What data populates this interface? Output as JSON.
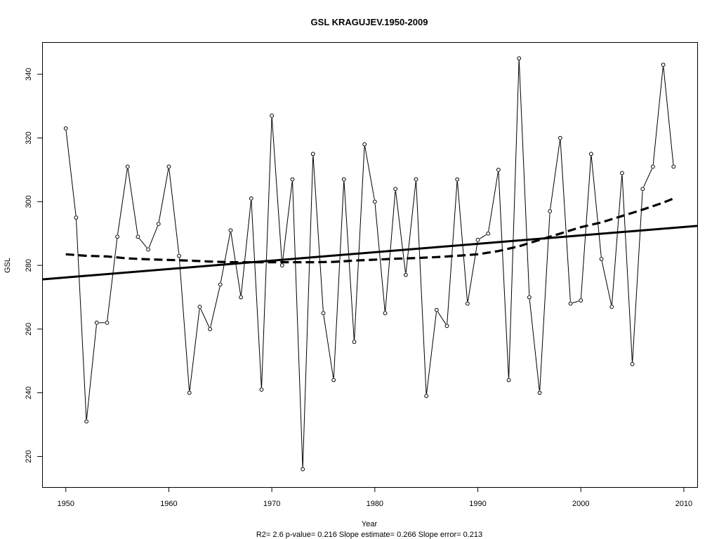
{
  "chart_data": {
    "type": "line",
    "title": "GSL   KRAGUJEV.1950-2009",
    "xlabel": "Year",
    "ylabel": "GSL",
    "subtitle": "R2= 2.6  p-value= 0.216  Slope estimate= 0.266  Slope error= 0.213",
    "xlim": [
      1947.7,
      2011.3
    ],
    "ylim": [
      210.4,
      350.1
    ],
    "xticks": [
      1950,
      1960,
      1970,
      1980,
      1990,
      2000,
      2010
    ],
    "yticks": [
      220,
      240,
      260,
      280,
      300,
      320,
      340
    ],
    "grid": false,
    "x": [
      1950,
      1951,
      1952,
      1953,
      1954,
      1955,
      1956,
      1957,
      1958,
      1959,
      1960,
      1961,
      1962,
      1963,
      1964,
      1965,
      1966,
      1967,
      1968,
      1969,
      1970,
      1971,
      1972,
      1973,
      1974,
      1975,
      1976,
      1977,
      1978,
      1979,
      1980,
      1981,
      1982,
      1983,
      1984,
      1985,
      1986,
      1987,
      1988,
      1989,
      1990,
      1991,
      1992,
      1993,
      1994,
      1995,
      1996,
      1997,
      1998,
      1999,
      2000,
      2001,
      2002,
      2003,
      2004,
      2005,
      2006,
      2007,
      2008,
      2009
    ],
    "series": [
      {
        "values": [
          323,
          295,
          231,
          262,
          262,
          289,
          311,
          289,
          285,
          293,
          311,
          283,
          240,
          267,
          260,
          274,
          291,
          270,
          301,
          241,
          327,
          280,
          307,
          216,
          315,
          265,
          244,
          307,
          256,
          318,
          300,
          265,
          304,
          277,
          307,
          239,
          266,
          261,
          307,
          268,
          288,
          290,
          310,
          244,
          345,
          270,
          240,
          297,
          320,
          268,
          269,
          315,
          282,
          267,
          309,
          249,
          304,
          311,
          343,
          311
        ],
        "style": "points-lines",
        "color": "#000000"
      },
      {
        "line": "linear-trend",
        "x": [
          1947.7,
          2011.3
        ],
        "values": [
          275.6,
          292.4
        ],
        "style": "solid-thick",
        "color": "#000000"
      },
      {
        "line": "smoothed",
        "x": [
          1950,
          1952,
          1954,
          1956,
          1958,
          1960,
          1962,
          1964,
          1966,
          1968,
          1970,
          1972,
          1974,
          1976,
          1978,
          1980,
          1982,
          1984,
          1986,
          1988,
          1990,
          1992,
          1994,
          1996,
          1998,
          2000,
          2002,
          2004,
          2006,
          2008,
          2009
        ],
        "values": [
          283.5,
          283.0,
          282.8,
          282.2,
          281.9,
          281.7,
          281.5,
          281.2,
          281.0,
          281.0,
          281.0,
          281.0,
          281.0,
          281.1,
          281.5,
          281.8,
          282.1,
          282.3,
          282.6,
          283.0,
          283.5,
          284.5,
          286.0,
          288.0,
          290.0,
          292.0,
          293.5,
          295.5,
          297.5,
          299.7,
          301.0
        ],
        "style": "dashed-thick",
        "color": "#000000"
      }
    ]
  }
}
